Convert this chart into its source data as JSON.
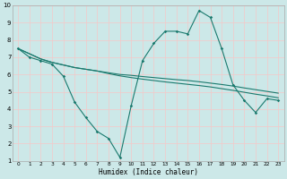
{
  "xlabel": "Humidex (Indice chaleur)",
  "bg_color": "#cce8e8",
  "grid_color": "#f5c8c8",
  "line_color": "#1a7a6e",
  "xlim": [
    -0.5,
    23.5
  ],
  "ylim": [
    1,
    10
  ],
  "xticks": [
    0,
    1,
    2,
    3,
    4,
    5,
    6,
    7,
    8,
    9,
    10,
    11,
    12,
    13,
    14,
    15,
    16,
    17,
    18,
    19,
    20,
    21,
    22,
    23
  ],
  "yticks": [
    1,
    2,
    3,
    4,
    5,
    6,
    7,
    8,
    9,
    10
  ],
  "series1_x": [
    0,
    1,
    2,
    3,
    4,
    5,
    6,
    7,
    8,
    9,
    10,
    11,
    12,
    13,
    14,
    15,
    16,
    17,
    18,
    19,
    20,
    21,
    22,
    23
  ],
  "series1_y": [
    7.5,
    7.2,
    6.9,
    6.7,
    6.55,
    6.4,
    6.3,
    6.2,
    6.1,
    6.0,
    5.95,
    5.88,
    5.82,
    5.76,
    5.7,
    5.65,
    5.58,
    5.5,
    5.42,
    5.33,
    5.22,
    5.12,
    5.02,
    4.92
  ],
  "series2_x": [
    0,
    1,
    2,
    3,
    4,
    5,
    6,
    7,
    8,
    9,
    10,
    11,
    12,
    13,
    14,
    15,
    16,
    17,
    18,
    19,
    20,
    21,
    22,
    23
  ],
  "series2_y": [
    7.5,
    7.2,
    6.9,
    6.7,
    6.55,
    6.4,
    6.3,
    6.2,
    6.05,
    5.92,
    5.82,
    5.73,
    5.65,
    5.57,
    5.5,
    5.43,
    5.36,
    5.28,
    5.18,
    5.08,
    4.97,
    4.86,
    4.76,
    4.65
  ],
  "series3_x": [
    0,
    1,
    2,
    3,
    4,
    5,
    6,
    7,
    8,
    9,
    10,
    11,
    12,
    13,
    14,
    15,
    16,
    17,
    18,
    19,
    20,
    21,
    22,
    23
  ],
  "series3_y": [
    7.5,
    7.0,
    6.8,
    6.6,
    5.9,
    4.4,
    3.5,
    2.7,
    2.3,
    1.2,
    4.2,
    6.8,
    7.8,
    8.5,
    8.5,
    8.35,
    9.7,
    9.3,
    7.5,
    5.4,
    4.5,
    3.8,
    4.6,
    4.5
  ]
}
